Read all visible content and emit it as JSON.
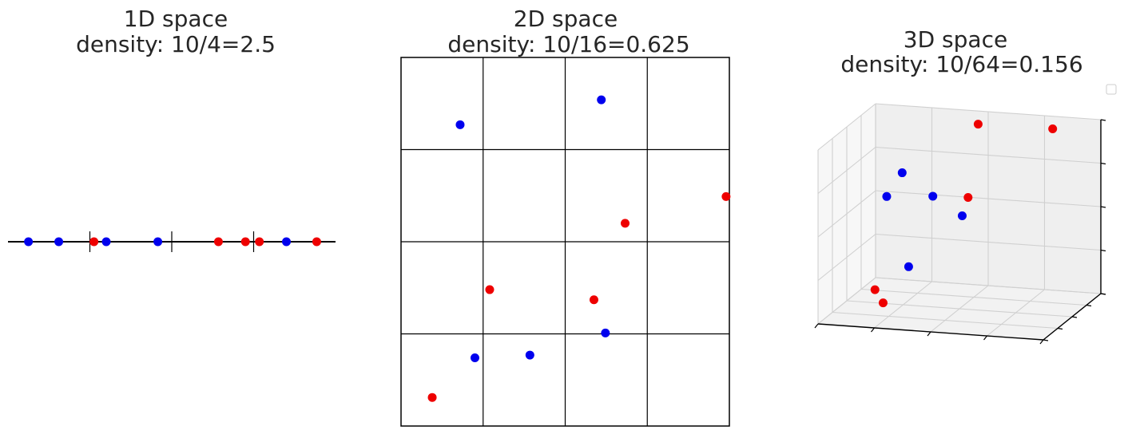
{
  "colors": {
    "class_a": "#0000ee",
    "class_b": "#ee0000",
    "axis": "#000000",
    "grid": "#d0d0d0",
    "pane_back": "#efefef",
    "pane_left": "#f7f7f7",
    "pane_floor": "#f2f2f2"
  },
  "chart_data": [
    {
      "type": "scatter",
      "title_line1": "1D space",
      "title_line2": "density: 10/4=2.5",
      "xlim": [
        0,
        4
      ],
      "bins": 4,
      "points": [
        {
          "x": 0.25,
          "class": "blue"
        },
        {
          "x": 0.62,
          "class": "blue"
        },
        {
          "x": 1.05,
          "class": "red"
        },
        {
          "x": 1.2,
          "class": "blue"
        },
        {
          "x": 1.83,
          "class": "blue"
        },
        {
          "x": 2.57,
          "class": "red"
        },
        {
          "x": 2.9,
          "class": "red"
        },
        {
          "x": 3.07,
          "class": "red"
        },
        {
          "x": 3.4,
          "class": "blue"
        },
        {
          "x": 3.77,
          "class": "red"
        }
      ]
    },
    {
      "type": "scatter",
      "title_line1": "2D space",
      "title_line2": "density: 10/16=0.625",
      "xlim": [
        0,
        4
      ],
      "ylim": [
        0,
        4
      ],
      "grid_cells": 4,
      "points": [
        {
          "x": 0.72,
          "y": 3.27,
          "class": "blue"
        },
        {
          "x": 2.44,
          "y": 3.54,
          "class": "blue"
        },
        {
          "x": 3.96,
          "y": 2.49,
          "class": "red"
        },
        {
          "x": 2.73,
          "y": 2.2,
          "class": "red"
        },
        {
          "x": 1.08,
          "y": 1.48,
          "class": "red"
        },
        {
          "x": 2.35,
          "y": 1.37,
          "class": "red"
        },
        {
          "x": 2.49,
          "y": 1.01,
          "class": "blue"
        },
        {
          "x": 1.57,
          "y": 0.77,
          "class": "blue"
        },
        {
          "x": 0.9,
          "y": 0.74,
          "class": "blue"
        },
        {
          "x": 0.38,
          "y": 0.31,
          "class": "red"
        }
      ]
    },
    {
      "type": "scatter3d",
      "title_line1": "3D space",
      "title_line2": "density: 10/64=0.156",
      "xlim": [
        0,
        4
      ],
      "ylim": [
        0,
        4
      ],
      "zlim": [
        0,
        4
      ],
      "legend": "empty",
      "points": [
        {
          "x": 0.7,
          "y": 2.0,
          "z": 3.9,
          "class": "red"
        },
        {
          "x": 1.0,
          "y": 3.4,
          "z": 4.0,
          "class": "red"
        },
        {
          "x": 1.4,
          "y": 2.0,
          "z": 2.4,
          "class": "red"
        },
        {
          "x": 0.5,
          "y": 0.6,
          "z": 2.6,
          "class": "blue"
        },
        {
          "x": 0.4,
          "y": 0.3,
          "z": 2.0,
          "class": "blue"
        },
        {
          "x": 1.5,
          "y": 1.4,
          "z": 2.4,
          "class": "blue"
        },
        {
          "x": 2.2,
          "y": 2.1,
          "z": 2.2,
          "class": "blue"
        },
        {
          "x": 2.4,
          "y": 1.2,
          "z": 1.0,
          "class": "blue"
        },
        {
          "x": 2.0,
          "y": 0.5,
          "z": 0.3,
          "class": "red"
        },
        {
          "x": 3.0,
          "y": 0.9,
          "z": 0.3,
          "class": "red"
        }
      ]
    }
  ]
}
